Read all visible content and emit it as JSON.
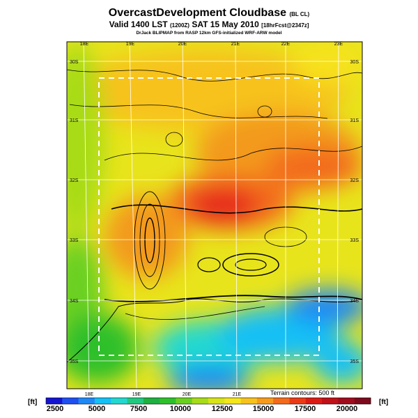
{
  "header": {
    "title": "OvercastDevelopment Cloudbase",
    "title_suffix": "(BL CL)",
    "valid_line": "Valid 1400 LST",
    "valid_code": "(1200Z)",
    "valid_date": "SAT 15 May 2010",
    "forecast": "[18hrFcst@2347z]",
    "credit": "DrJack BLIPMAP from RASP 12km GFS-initialized WRF-ARW model"
  },
  "map": {
    "top_lon_labels": [
      "18E",
      "19E",
      "20E",
      "21E",
      "22E",
      "23E"
    ],
    "bottom_lon_labels": [
      "18E",
      "19E",
      "20E",
      "21E"
    ],
    "left_lat_labels": [
      "30S",
      "31S",
      "32S",
      "33S",
      "34S",
      "35S"
    ],
    "right_lat_labels": [
      "30S",
      "31S",
      "32S",
      "33S",
      "34S",
      "35S"
    ],
    "terrain_note": "Terrain contours: 500 ft"
  },
  "colorbar": {
    "unit_left": "[ft]",
    "unit_right": "[ft]",
    "labels": [
      "2500",
      "5000",
      "7500",
      "10000",
      "12500",
      "15000",
      "17500",
      "20000"
    ],
    "colors": [
      "#1414d2",
      "#1f4ff0",
      "#1e88f5",
      "#14c0f5",
      "#22d8d0",
      "#20c880",
      "#1eb040",
      "#2ec02a",
      "#6ad020",
      "#a8dc18",
      "#d8e418",
      "#f5e61a",
      "#f7c21c",
      "#f79a1c",
      "#f36a1a",
      "#ec3a16",
      "#dc1a14",
      "#c01018",
      "#a00c1c",
      "#7c0a1c"
    ]
  }
}
